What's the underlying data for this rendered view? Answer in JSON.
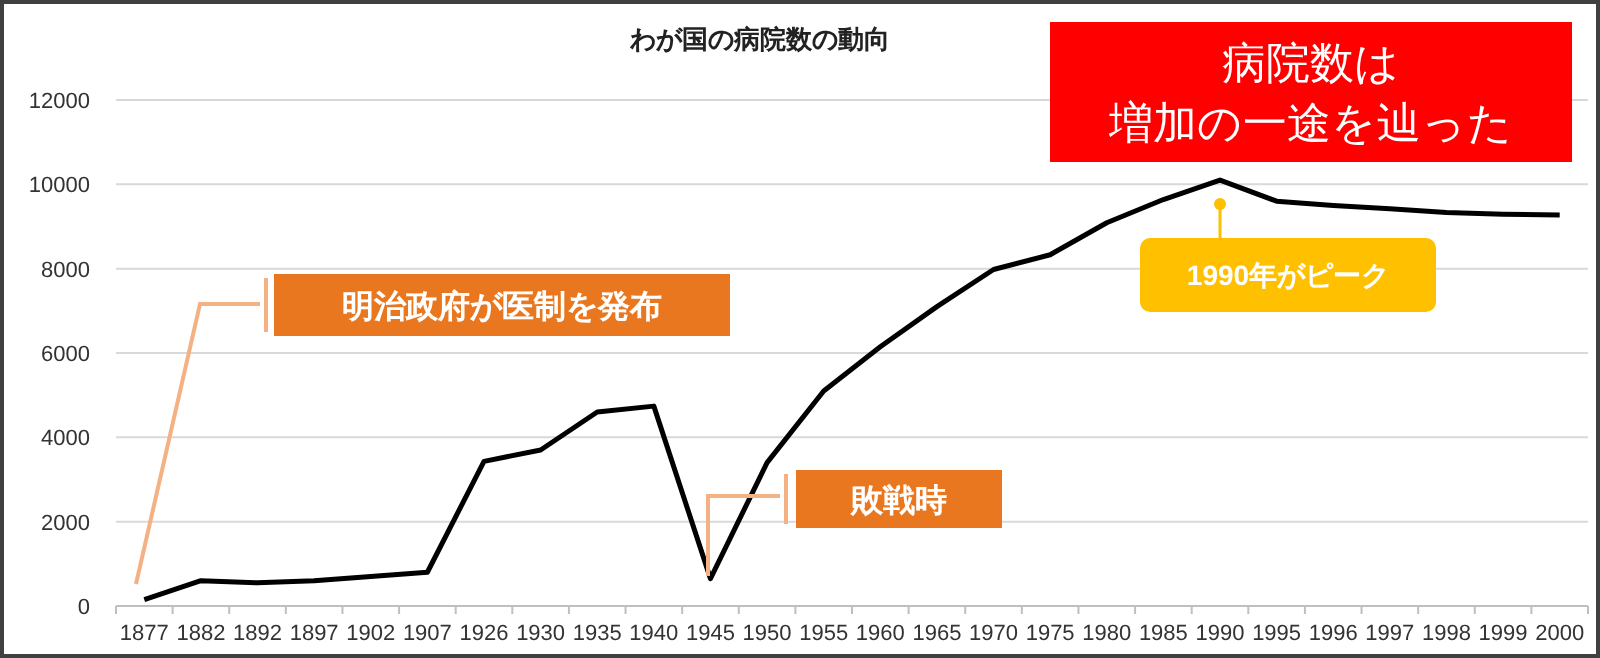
{
  "chart_data": {
    "type": "line",
    "title": "わが国の病院数の動向",
    "categories": [
      "1877",
      "1882",
      "1892",
      "1897",
      "1902",
      "1907",
      "1926",
      "1930",
      "1935",
      "1940",
      "1945",
      "1950",
      "1955",
      "1960",
      "1965",
      "1970",
      "1975",
      "1980",
      "1985",
      "1990",
      "1995",
      "1996",
      "1997",
      "1998",
      "1999",
      "2000"
    ],
    "series": [
      {
        "color": "#000000",
        "values": [
          150,
          600,
          550,
          600,
          700,
          800,
          3430,
          3700,
          4600,
          4740,
          650,
          3400,
          5100,
          6150,
          7100,
          7980,
          8330,
          9090,
          9640,
          10100,
          9600,
          9500,
          9420,
          9330,
          9290,
          9270
        ]
      }
    ],
    "ylim": [
      0,
      12000
    ],
    "yticks": [
      0,
      2000,
      4000,
      6000,
      8000,
      10000,
      12000
    ],
    "grid": "y",
    "marker": "none",
    "line_style": "solid",
    "annotations": [
      "明治政府が医制を発布",
      "敗戦時",
      {
        "text": "1990年がピーク",
        "x": "1990",
        "y": 10100
      },
      "病院数は増加の一途を辿った"
    ]
  }
}
